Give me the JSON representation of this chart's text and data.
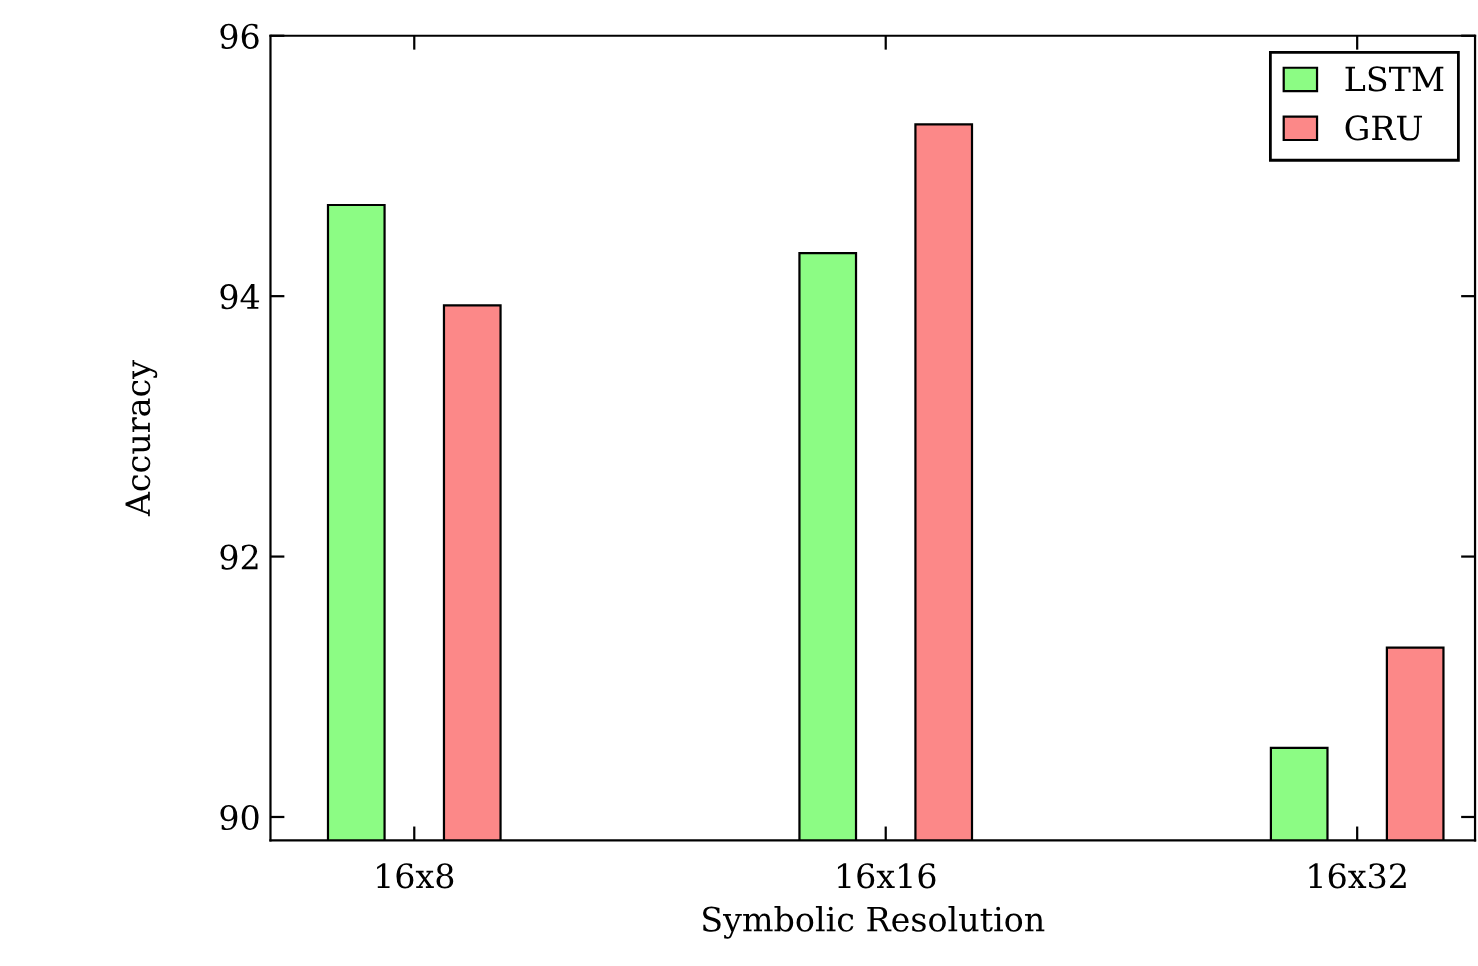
{
  "chart_data": {
    "type": "bar",
    "xlabel": "Symbolic Resolution",
    "ylabel": "Accuracy",
    "categories": [
      "16x8",
      "16x16",
      "16x32"
    ],
    "series": [
      {
        "name": "LSTM",
        "color": "#8cfc84",
        "values": [
          94.7,
          94.33,
          90.53
        ]
      },
      {
        "name": "GRU",
        "color": "#fc8888",
        "values": [
          93.93,
          95.32,
          91.3
        ]
      }
    ],
    "ylim": [
      89.82,
      96
    ],
    "yticks": [
      90,
      92,
      94,
      96
    ],
    "legend": "top right",
    "grid": false
  }
}
